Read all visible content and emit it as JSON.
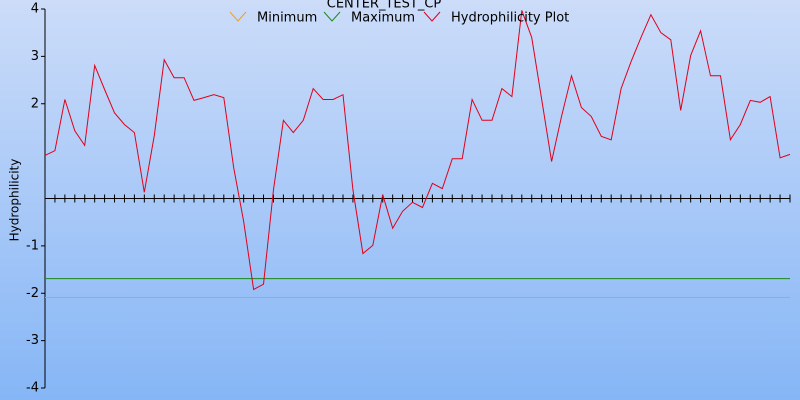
{
  "chart_data": {
    "type": "line",
    "title": "CENTER_TEST_CP",
    "y_label": "Hydrophilicity",
    "ylim": [
      -4,
      4
    ],
    "yticks": [
      -4,
      -3,
      -2,
      -1,
      2,
      3,
      4
    ],
    "reference_lines": [
      {
        "name": "Minimum",
        "color": "#e8a030",
        "value": -2.09
      },
      {
        "name": "Maximum",
        "color": "#1a8a1a",
        "value": -1.69
      }
    ],
    "series": [
      {
        "name": "Hydrophilicity Plot",
        "color": "#e0001a",
        "values": [
          0.91,
          1.01,
          2.09,
          1.43,
          1.12,
          2.81,
          2.3,
          1.81,
          1.56,
          1.39,
          0.13,
          1.33,
          2.93,
          2.55,
          2.55,
          2.07,
          2.13,
          2.19,
          2.13,
          0.65,
          -0.49,
          -1.92,
          -1.81,
          0.19,
          1.65,
          1.39,
          1.65,
          2.32,
          2.09,
          2.09,
          2.19,
          0.19,
          -1.16,
          -0.99,
          0.08,
          -0.63,
          -0.27,
          -0.08,
          -0.19,
          0.32,
          0.21,
          0.84,
          0.84,
          2.09,
          1.65,
          1.65,
          2.32,
          2.15,
          3.97,
          3.4,
          2.09,
          0.78,
          1.73,
          2.59,
          1.92,
          1.73,
          1.31,
          1.24,
          2.32,
          2.89,
          3.4,
          3.88,
          3.5,
          3.35,
          1.86,
          3.02,
          3.54,
          2.59,
          2.59,
          1.24,
          1.56,
          2.07,
          2.03,
          2.15,
          0.86,
          0.93
        ]
      }
    ]
  }
}
